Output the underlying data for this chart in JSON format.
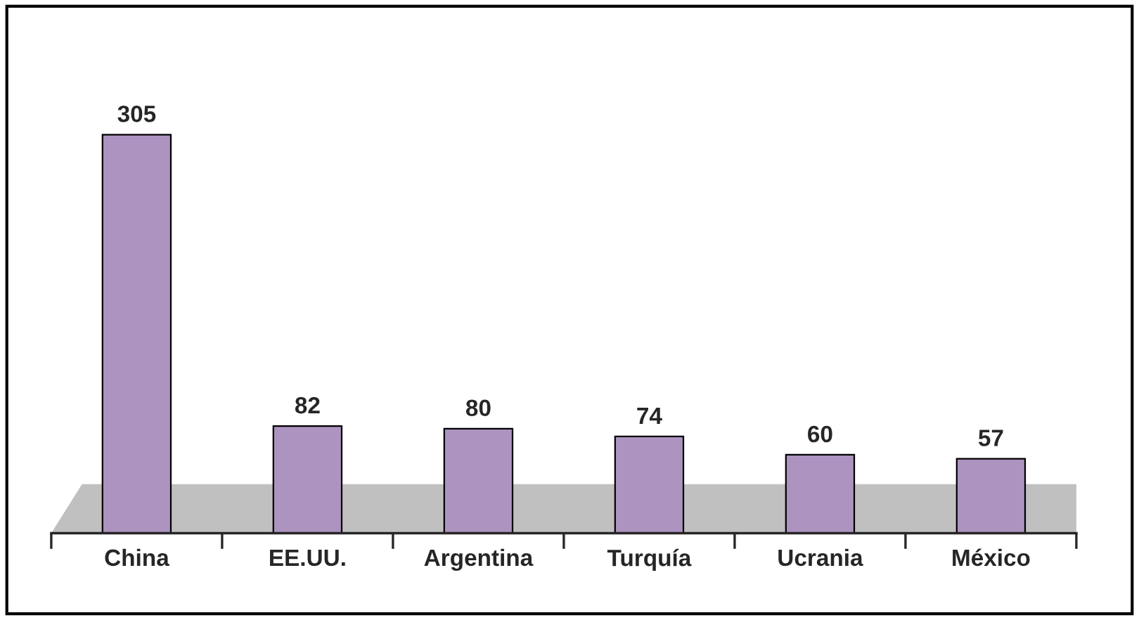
{
  "chart_data": {
    "type": "bar",
    "categories": [
      "China",
      "EE.UU.",
      "Argentina",
      "Turquía",
      "Ucrania",
      "México"
    ],
    "values": [
      305,
      82,
      80,
      74,
      60,
      57
    ],
    "color": "#ad93c0",
    "data_labels": true
  }
}
